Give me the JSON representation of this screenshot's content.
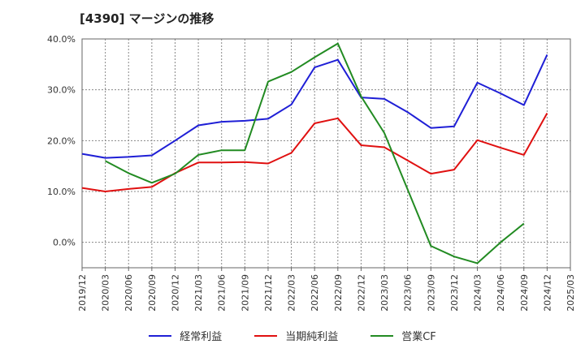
{
  "title": "[4390]  マージンの推移",
  "colors": {
    "grid": "#888888",
    "axis": "#666666"
  },
  "chart_data": {
    "type": "line",
    "x": [
      "2019/12",
      "2020/03",
      "2020/06",
      "2020/09",
      "2020/12",
      "2021/03",
      "2021/06",
      "2021/09",
      "2021/12",
      "2022/03",
      "2022/06",
      "2022/09",
      "2022/12",
      "2023/03",
      "2023/06",
      "2023/09",
      "2023/12",
      "2024/03",
      "2024/06",
      "2024/09",
      "2024/12",
      "2025/03"
    ],
    "ylim": [
      -5,
      40
    ],
    "yticks": [
      0,
      10,
      20,
      30,
      40
    ],
    "ytick_labels": [
      "0.0%",
      "10.0%",
      "20.0%",
      "30.0%",
      "40.0%"
    ],
    "grid": true,
    "legend_position": "bottom",
    "series": [
      {
        "name": "経常利益",
        "color": "#1f1fd6",
        "values": [
          17.4,
          16.6,
          16.8,
          17.1,
          20.0,
          23.0,
          23.7,
          23.9,
          24.3,
          27.1,
          34.4,
          35.9,
          28.5,
          28.2,
          25.6,
          22.5,
          22.8,
          31.4,
          29.3,
          27.0,
          36.9,
          null
        ]
      },
      {
        "name": "当期純利益",
        "color": "#e01010",
        "values": [
          10.7,
          10.0,
          10.5,
          10.9,
          13.6,
          15.7,
          15.7,
          15.8,
          15.5,
          17.6,
          23.4,
          24.4,
          19.1,
          18.7,
          16.1,
          13.5,
          14.3,
          20.1,
          18.6,
          17.2,
          25.4,
          null
        ]
      },
      {
        "name": "営業CF",
        "color": "#228b22",
        "values": [
          null,
          16.0,
          13.6,
          11.7,
          13.5,
          17.2,
          18.1,
          18.1,
          31.6,
          33.5,
          36.4,
          39.1,
          28.7,
          21.5,
          10.4,
          -0.7,
          -2.8,
          -4.1,
          0.0,
          3.7,
          null,
          null
        ]
      }
    ]
  }
}
